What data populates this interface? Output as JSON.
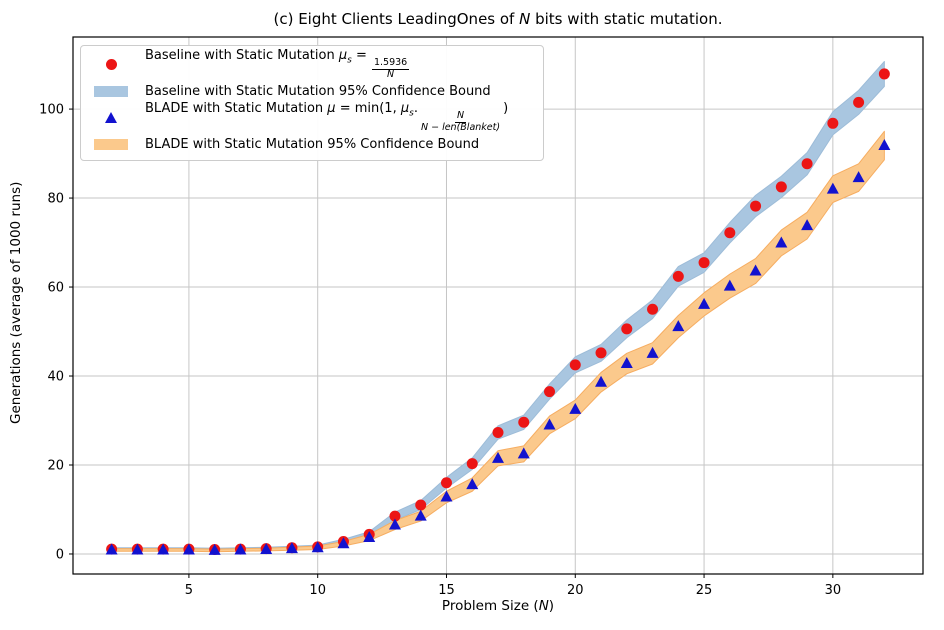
{
  "figure": {
    "title_parts": {
      "pre": "(c) Eight Clients LeadingOnes of ",
      "var": "N",
      "post": " bits with static mutation."
    },
    "xlabel_parts": {
      "pre": "Problem Size (",
      "var": "N",
      "post": ")"
    },
    "ylabel": "Generations (average of 1000 runs)"
  },
  "legend": {
    "items": [
      {
        "marker": "red-circle",
        "label": "Baseline with Static Mutation ",
        "math": {
          "mu": "μ",
          "sub": "s",
          "eq": " = ",
          "num": "1.5936",
          "den": "N"
        },
        "text_full": "Baseline with Static Mutation μs = 1.5936/N"
      },
      {
        "marker": "baseline-ci-swatch",
        "label": "Baseline with Static Mutation 95% Confidence Bound"
      },
      {
        "marker": "blue-triangle",
        "label": "BLADE with Static Mutation ",
        "math": {
          "mu": "μ",
          "eq": " = min(1, ",
          "mu2": "μ",
          "sub2": "s",
          "dot": ".",
          "num": "N",
          "den": "N − len(Blanket)",
          "close": ")"
        },
        "text_full": "BLADE with Static Mutation μ = min(1, μs.N/(N − len(Blanket)))"
      },
      {
        "marker": "blade-ci-swatch",
        "label": "BLADE with Static Mutation 95% Confidence Bound"
      }
    ]
  },
  "chart_data": {
    "type": "scatter",
    "title": "(c) Eight Clients LeadingOnes of N bits with static mutation.",
    "xlabel": "Problem Size (N)",
    "ylabel": "Generations (average of 1000 runs)",
    "x": [
      2,
      3,
      4,
      5,
      6,
      7,
      8,
      9,
      10,
      11,
      12,
      13,
      14,
      15,
      16,
      17,
      18,
      19,
      20,
      21,
      22,
      23,
      24,
      25,
      26,
      27,
      28,
      29,
      30,
      31,
      32
    ],
    "series": [
      {
        "name": "Baseline with Static Mutation",
        "marker": "circle",
        "color": "#ec1515",
        "band_color": "#a9c6e0",
        "band_edge": "#9dbcd8",
        "band_name": "baseline-confidence-band",
        "values": [
          1.1,
          1.1,
          1.1,
          1.1,
          1.0,
          1.1,
          1.2,
          1.4,
          1.6,
          2.8,
          4.4,
          8.5,
          11.0,
          16.0,
          20.3,
          27.3,
          29.6,
          36.5,
          42.5,
          45.2,
          50.6,
          55.0,
          62.4,
          65.5,
          72.2,
          78.2,
          82.5,
          87.7,
          96.8,
          101.5,
          107.9
        ],
        "ci_halfwidth": [
          0.3,
          0.3,
          0.3,
          0.3,
          0.3,
          0.3,
          0.3,
          0.35,
          0.4,
          0.5,
          0.6,
          0.9,
          1.0,
          1.2,
          1.3,
          1.5,
          1.6,
          1.7,
          1.8,
          1.9,
          2.0,
          2.1,
          2.2,
          2.2,
          2.3,
          2.4,
          2.4,
          2.5,
          2.6,
          2.7,
          2.8
        ]
      },
      {
        "name": "BLADE with Static Mutation",
        "marker": "triangle-up",
        "color": "#1212cf",
        "band_color": "#fbc98c",
        "band_edge": "#f6ad61",
        "band_name": "blade-confidence-band",
        "values": [
          0.9,
          0.9,
          0.9,
          0.9,
          0.8,
          0.9,
          1.0,
          1.2,
          1.4,
          2.3,
          3.7,
          6.5,
          8.5,
          12.8,
          15.6,
          21.5,
          22.5,
          29.0,
          32.5,
          38.6,
          42.8,
          45.1,
          51.1,
          56.1,
          60.2,
          63.6,
          69.9,
          73.8,
          82.0,
          84.6,
          91.8
        ],
        "ci_halfwidth": [
          0.3,
          0.3,
          0.3,
          0.3,
          0.3,
          0.3,
          0.3,
          0.35,
          0.4,
          0.5,
          0.7,
          1.0,
          1.1,
          1.3,
          1.5,
          1.7,
          1.8,
          2.0,
          2.1,
          2.2,
          2.3,
          2.4,
          2.5,
          2.6,
          2.7,
          2.8,
          2.9,
          3.0,
          3.0,
          3.1,
          3.2
        ]
      }
    ],
    "x_ticks": [
      5,
      10,
      15,
      20,
      25,
      30
    ],
    "y_ticks": [
      0,
      20,
      40,
      60,
      80,
      100
    ],
    "x_range": [
      0.5,
      33.5
    ],
    "y_range": [
      -4.5,
      116.2
    ],
    "grid": true,
    "legend_position": "upper left",
    "colors": {
      "grid": "#c6c6c6",
      "axis": "#000000",
      "background": "#ffffff"
    }
  }
}
